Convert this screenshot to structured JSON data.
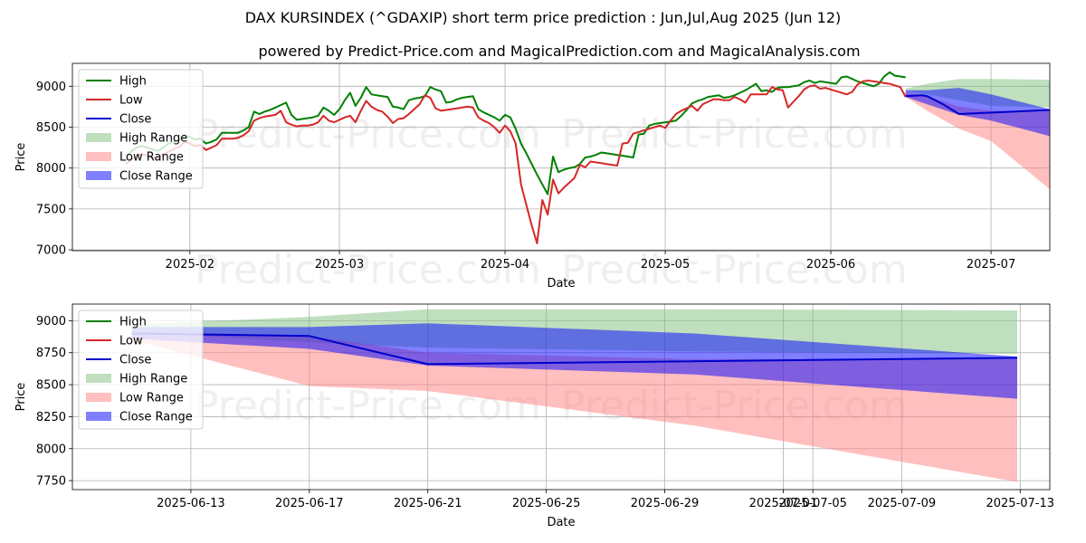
{
  "title": "DAX KURSINDEX (^GDAXIP) short term price prediction : Jun,Jul,Aug 2025 (Jun 12)",
  "subtitle": "powered by Predict-Price.com and MagicalPrediction.com and MagicalAnalysis.com",
  "watermark": "Predict-Price.com",
  "colors": {
    "high": "#008000",
    "low": "#d62728",
    "close": "#0000cc",
    "high_range": "#7fbf7f",
    "low_range": "#ff8080",
    "close_range": "#0000ff",
    "grid": "#b0b0b0"
  },
  "legend": [
    "High",
    "Low",
    "Close",
    "High Range",
    "Low Range",
    "Close Range"
  ],
  "chart_data": [
    {
      "type": "line",
      "xlabel": "Date",
      "ylabel": "Price",
      "xlim": [
        -10,
        173
      ],
      "ylim": [
        6990,
        9280
      ],
      "xtick_positions": [
        12,
        40,
        71,
        101,
        132,
        162
      ],
      "xtick_labels": [
        "2025-02",
        "2025-03",
        "2025-04",
        "2025-05",
        "2025-06",
        "2025-07"
      ],
      "ytick_values": [
        7000,
        7500,
        8000,
        8500,
        9000
      ],
      "ytick_labels": [
        "7000",
        "7500",
        "8000",
        "8500",
        "9000"
      ],
      "series": [
        {
          "name": "High",
          "x": [
            0,
            1,
            2,
            3,
            4,
            5,
            6,
            7,
            8,
            9,
            10,
            11,
            12,
            13,
            14,
            15,
            16,
            17,
            18,
            19,
            20,
            21,
            22,
            23,
            24,
            25,
            26,
            27,
            28,
            29,
            30,
            31,
            32,
            33,
            34,
            35,
            36,
            37,
            38,
            39,
            40,
            41,
            42,
            43,
            44,
            45,
            46,
            47,
            48,
            49,
            50,
            51,
            52,
            53,
            54,
            55,
            56,
            57,
            58,
            59,
            60,
            61,
            62,
            63,
            64,
            65,
            66,
            67,
            68,
            69,
            70,
            71,
            72,
            73,
            74,
            75,
            76,
            77,
            78,
            79,
            80,
            81,
            82,
            83,
            84,
            85,
            86,
            87,
            88,
            89,
            90,
            91,
            92,
            93,
            94,
            95,
            96,
            97,
            98,
            99,
            100,
            101,
            102,
            103,
            104,
            105,
            106,
            107,
            108,
            109,
            110,
            111,
            112,
            113,
            114,
            115,
            116,
            117,
            118,
            119,
            120,
            121,
            122,
            123,
            124,
            125,
            126,
            127,
            128,
            129,
            130,
            131,
            132,
            133,
            134,
            135,
            136,
            137,
            138,
            139,
            140,
            141,
            142,
            143,
            144,
            145,
            146
          ],
          "values": [
            8150,
            8200,
            8250,
            8270,
            8250,
            8230,
            8210,
            8250,
            8300,
            8320,
            8350,
            8400,
            8380,
            8350,
            8360,
            8300,
            8320,
            8350,
            8430,
            8430,
            8430,
            8430,
            8460,
            8500,
            8690,
            8660,
            8690,
            8710,
            8740,
            8770,
            8800,
            8650,
            8590,
            8600,
            8610,
            8620,
            8640,
            8740,
            8700,
            8650,
            8720,
            8830,
            8920,
            8760,
            8860,
            8990,
            8900,
            8890,
            8880,
            8870,
            8750,
            8740,
            8720,
            8830,
            8850,
            8860,
            8880,
            8990,
            8960,
            8940,
            8800,
            8810,
            8840,
            8860,
            8870,
            8880,
            8720,
            8680,
            8650,
            8620,
            8580,
            8650,
            8620,
            8480,
            8300,
            8180,
            8050,
            7920,
            7800,
            7680,
            8140,
            7950,
            7980,
            8000,
            8010,
            8050,
            8130,
            8140,
            8160,
            8190,
            8180,
            8170,
            8160,
            8150,
            8140,
            8130,
            8410,
            8420,
            8520,
            8540,
            8550,
            8560,
            8570,
            8580,
            8640,
            8710,
            8790,
            8820,
            8840,
            8870,
            8880,
            8890,
            8860,
            8870,
            8890,
            8920,
            8950,
            8990,
            9030,
            8940,
            8950,
            8930,
            8980,
            8990,
            8990,
            9000,
            9010,
            9050,
            9070,
            9040,
            9060,
            9050,
            9040,
            9030,
            9110,
            9120,
            9090,
            9060,
            9040,
            9020,
            9000,
            9030,
            9120,
            9170,
            9130,
            9120,
            9110
          ],
          "close_at": [
            0
          ]
        },
        {
          "name": "Low",
          "x": [
            0,
            1,
            2,
            3,
            4,
            5,
            6,
            7,
            8,
            9,
            10,
            11,
            12,
            13,
            14,
            15,
            16,
            17,
            18,
            19,
            20,
            21,
            22,
            23,
            24,
            25,
            26,
            27,
            28,
            29,
            30,
            31,
            32,
            33,
            34,
            35,
            36,
            37,
            38,
            39,
            40,
            41,
            42,
            43,
            44,
            45,
            46,
            47,
            48,
            49,
            50,
            51,
            52,
            53,
            54,
            55,
            56,
            57,
            58,
            59,
            60,
            61,
            62,
            63,
            64,
            65,
            66,
            67,
            68,
            69,
            70,
            71,
            72,
            73,
            74,
            75,
            76,
            77,
            78,
            79,
            80,
            81,
            82,
            83,
            84,
            85,
            86,
            87,
            88,
            89,
            90,
            91,
            92,
            93,
            94,
            95,
            96,
            97,
            98,
            99,
            100,
            101,
            102,
            103,
            104,
            105,
            106,
            107,
            108,
            109,
            110,
            111,
            112,
            113,
            114,
            115,
            116,
            117,
            118,
            119,
            120,
            121,
            122,
            123,
            124,
            125,
            126,
            127,
            128,
            129,
            130,
            131,
            132,
            133,
            134,
            135,
            136,
            137,
            138,
            139,
            140,
            141,
            142,
            143,
            144,
            145,
            146
          ],
          "values": [
            8050,
            8100,
            8150,
            8170,
            8150,
            8130,
            8120,
            8170,
            8200,
            8230,
            8260,
            8320,
            8300,
            8270,
            8280,
            8220,
            8250,
            8280,
            8360,
            8360,
            8360,
            8370,
            8400,
            8450,
            8580,
            8610,
            8630,
            8640,
            8650,
            8700,
            8560,
            8530,
            8510,
            8520,
            8520,
            8530,
            8560,
            8640,
            8580,
            8560,
            8590,
            8620,
            8640,
            8560,
            8700,
            8820,
            8750,
            8710,
            8690,
            8630,
            8550,
            8600,
            8610,
            8660,
            8720,
            8780,
            8890,
            8860,
            8730,
            8700,
            8710,
            8720,
            8730,
            8740,
            8750,
            8740,
            8620,
            8580,
            8550,
            8500,
            8430,
            8520,
            8450,
            8300,
            7800,
            7550,
            7300,
            7080,
            7610,
            7430,
            7860,
            7690,
            7760,
            7820,
            7880,
            8040,
            8010,
            8080,
            8070,
            8060,
            8050,
            8040,
            8030,
            8300,
            8310,
            8420,
            8440,
            8460,
            8480,
            8500,
            8520,
            8490,
            8580,
            8660,
            8700,
            8730,
            8760,
            8700,
            8780,
            8810,
            8840,
            8840,
            8830,
            8830,
            8870,
            8840,
            8800,
            8900,
            8900,
            8900,
            8900,
            8990,
            8960,
            8950,
            8740,
            8810,
            8880,
            8960,
            9000,
            9010,
            8970,
            8980,
            8960,
            8940,
            8920,
            8900,
            8930,
            9020,
            9060,
            9070,
            9060,
            9050,
            9040,
            9030,
            9010,
            8990,
            8870
          ]
        },
        {
          "name": "High Range",
          "x": [
            146,
            150,
            156,
            162,
            173
          ],
          "lower": [
            8940,
            8900,
            8830,
            8760,
            8740
          ],
          "upper": [
            8970,
            9030,
            9090,
            9090,
            9080
          ]
        },
        {
          "name": "Low Range",
          "x": [
            146,
            150,
            156,
            162,
            173
          ],
          "lower": [
            8870,
            8700,
            8480,
            8330,
            7740
          ],
          "upper": [
            8930,
            8880,
            8750,
            8700,
            8700
          ]
        },
        {
          "name": "Close Range",
          "x": [
            146,
            150,
            156,
            162,
            173
          ],
          "lower": [
            8870,
            8780,
            8650,
            8580,
            8390
          ],
          "upper": [
            8950,
            8950,
            8980,
            8900,
            8720
          ]
        },
        {
          "name": "Close",
          "x": [
            146,
            149,
            150,
            153,
            156,
            173
          ],
          "values": [
            8880,
            8890,
            8880,
            8780,
            8660,
            8710
          ]
        }
      ]
    },
    {
      "type": "line",
      "xlabel": "Date",
      "ylabel": "Price",
      "xlim": [
        0,
        33
      ],
      "ylim": [
        7680,
        9130
      ],
      "xtick_positions": [
        4,
        8,
        12,
        16,
        20,
        24,
        25,
        28,
        32
      ],
      "xtick_labels": [
        "2025-06-13",
        "2025-06-17",
        "2025-06-21",
        "2025-06-25",
        "2025-06-29",
        "2025-07-01",
        "2025-07-05",
        "2025-07-09",
        "2025-07-13"
      ],
      "ytick_values": [
        7750,
        8000,
        8250,
        8500,
        8750,
        9000
      ],
      "ytick_labels": [
        "7750",
        "8000",
        "8250",
        "8500",
        "8750",
        "9000"
      ],
      "series": [
        {
          "name": "High Range",
          "x": [
            2,
            8,
            12,
            21,
            31.9
          ],
          "lower": [
            8910,
            8830,
            8790,
            8760,
            8740
          ],
          "upper": [
            8970,
            9030,
            9090,
            9090,
            9080
          ]
        },
        {
          "name": "Low Range",
          "x": [
            2,
            8,
            12,
            21,
            31.9
          ],
          "lower": [
            8850,
            8490,
            8450,
            8180,
            7740
          ],
          "upper": [
            8920,
            8880,
            8750,
            8700,
            8700
          ]
        },
        {
          "name": "Close Range",
          "x": [
            2,
            8,
            12,
            21,
            31.9
          ],
          "lower": [
            8860,
            8780,
            8650,
            8580,
            8390
          ],
          "upper": [
            8950,
            8950,
            8980,
            8900,
            8720
          ]
        },
        {
          "name": "Close",
          "x": [
            2,
            5,
            8,
            12,
            31.9
          ],
          "values": [
            8900,
            8890,
            8880,
            8660,
            8710
          ]
        }
      ]
    }
  ]
}
